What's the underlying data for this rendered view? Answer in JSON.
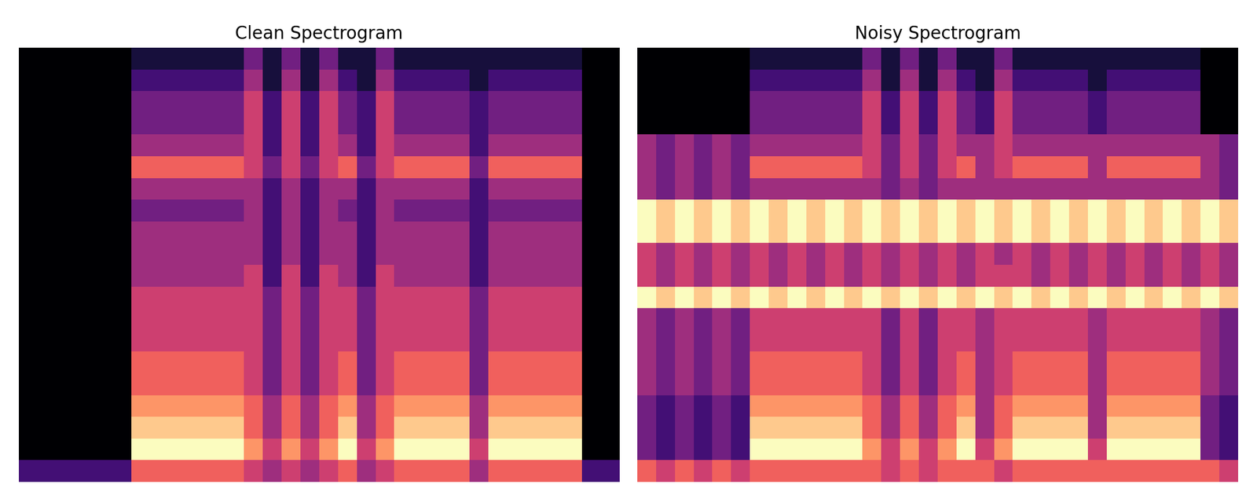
{
  "chart_data": [
    {
      "type": "heatmap",
      "title": "Clean Spectrogram",
      "color": "magma",
      "tick_labels": false,
      "cells": [
        [
          2,
          2,
          2,
          2,
          2,
          2,
          6,
          6,
          6,
          6,
          6,
          6,
          5,
          4,
          5,
          4,
          5,
          6,
          4,
          5,
          6,
          6,
          6,
          6,
          4,
          6,
          6,
          6,
          6,
          6,
          2,
          2
        ],
        [
          0,
          0,
          0,
          0,
          0,
          0,
          9,
          9,
          9,
          9,
          9,
          9,
          7,
          5,
          7,
          5,
          7,
          9,
          5,
          7,
          9,
          9,
          9,
          9,
          5,
          9,
          9,
          9,
          9,
          9,
          0,
          0
        ],
        [
          0,
          0,
          0,
          0,
          0,
          0,
          8,
          8,
          8,
          8,
          8,
          8,
          6,
          4,
          6,
          4,
          6,
          8,
          4,
          6,
          8,
          8,
          8,
          8,
          4,
          8,
          8,
          8,
          8,
          8,
          0,
          0
        ],
        [
          0,
          0,
          0,
          0,
          0,
          0,
          7,
          7,
          7,
          7,
          7,
          7,
          6,
          4,
          6,
          4,
          6,
          7,
          4,
          6,
          7,
          7,
          7,
          7,
          4,
          7,
          7,
          7,
          7,
          7,
          0,
          0
        ],
        [
          0,
          0,
          0,
          0,
          0,
          0,
          6,
          6,
          6,
          6,
          6,
          6,
          5,
          3,
          5,
          3,
          5,
          6,
          3,
          5,
          6,
          6,
          6,
          6,
          3,
          6,
          6,
          6,
          6,
          6,
          0,
          0
        ],
        [
          0,
          0,
          0,
          0,
          0,
          0,
          6,
          6,
          6,
          6,
          6,
          6,
          5,
          3,
          5,
          3,
          5,
          6,
          3,
          5,
          6,
          6,
          6,
          6,
          3,
          6,
          6,
          6,
          6,
          6,
          0,
          0
        ],
        [
          0,
          0,
          0,
          0,
          0,
          0,
          5,
          5,
          5,
          5,
          5,
          5,
          5,
          3,
          5,
          3,
          5,
          5,
          3,
          5,
          5,
          5,
          5,
          5,
          3,
          5,
          5,
          5,
          5,
          5,
          0,
          0
        ],
        [
          0,
          0,
          0,
          0,
          0,
          0,
          5,
          5,
          5,
          5,
          5,
          5,
          5,
          3,
          5,
          3,
          5,
          5,
          3,
          5,
          5,
          5,
          5,
          5,
          3,
          5,
          5,
          5,
          5,
          5,
          0,
          0
        ],
        [
          0,
          0,
          0,
          0,
          0,
          0,
          5,
          5,
          5,
          5,
          5,
          5,
          5,
          3,
          5,
          3,
          5,
          5,
          3,
          5,
          5,
          5,
          5,
          5,
          3,
          5,
          5,
          5,
          5,
          5,
          0,
          0
        ],
        [
          0,
          0,
          0,
          0,
          0,
          0,
          4,
          4,
          4,
          4,
          4,
          4,
          5,
          2,
          5,
          2,
          5,
          4,
          2,
          5,
          4,
          4,
          4,
          4,
          2,
          4,
          4,
          4,
          4,
          4,
          0,
          0
        ],
        [
          0,
          0,
          0,
          0,
          0,
          0,
          4,
          4,
          4,
          4,
          4,
          4,
          4,
          2,
          4,
          2,
          4,
          4,
          2,
          4,
          4,
          4,
          4,
          4,
          2,
          4,
          4,
          4,
          4,
          4,
          0,
          0
        ],
        [
          0,
          0,
          0,
          0,
          0,
          0,
          4,
          4,
          4,
          4,
          4,
          4,
          4,
          2,
          4,
          2,
          4,
          4,
          2,
          4,
          4,
          4,
          4,
          4,
          2,
          4,
          4,
          4,
          4,
          4,
          0,
          0
        ],
        [
          0,
          0,
          0,
          0,
          0,
          0,
          3,
          3,
          3,
          3,
          3,
          3,
          4,
          2,
          4,
          2,
          4,
          3,
          2,
          4,
          3,
          3,
          3,
          3,
          2,
          3,
          3,
          3,
          3,
          3,
          0,
          0
        ],
        [
          0,
          0,
          0,
          0,
          0,
          0,
          4,
          4,
          4,
          4,
          4,
          4,
          4,
          2,
          4,
          2,
          4,
          4,
          2,
          4,
          4,
          4,
          4,
          4,
          2,
          4,
          4,
          4,
          4,
          4,
          0,
          0
        ],
        [
          0,
          0,
          0,
          0,
          0,
          0,
          6,
          6,
          6,
          6,
          6,
          6,
          5,
          3,
          5,
          3,
          5,
          6,
          3,
          5,
          6,
          6,
          6,
          6,
          3,
          6,
          6,
          6,
          6,
          6,
          0,
          0
        ],
        [
          0,
          0,
          0,
          0,
          0,
          0,
          4,
          4,
          4,
          4,
          4,
          4,
          5,
          2,
          5,
          2,
          5,
          4,
          2,
          5,
          4,
          4,
          4,
          4,
          2,
          4,
          4,
          4,
          4,
          4,
          0,
          0
        ],
        [
          0,
          0,
          0,
          0,
          0,
          0,
          3,
          3,
          3,
          3,
          3,
          3,
          5,
          2,
          5,
          2,
          5,
          3,
          2,
          5,
          3,
          3,
          3,
          3,
          2,
          3,
          3,
          3,
          3,
          3,
          0,
          0
        ],
        [
          0,
          0,
          0,
          0,
          0,
          0,
          3,
          3,
          3,
          3,
          3,
          3,
          5,
          2,
          5,
          2,
          5,
          3,
          2,
          5,
          3,
          3,
          3,
          3,
          2,
          3,
          3,
          3,
          3,
          3,
          0,
          0
        ],
        [
          0,
          0,
          0,
          0,
          0,
          0,
          2,
          2,
          2,
          2,
          2,
          2,
          4,
          1,
          4,
          1,
          4,
          2,
          1,
          4,
          2,
          2,
          2,
          2,
          1,
          2,
          2,
          2,
          2,
          2,
          0,
          0
        ],
        [
          0,
          0,
          0,
          0,
          0,
          0,
          1,
          1,
          1,
          1,
          1,
          1,
          3,
          1,
          3,
          1,
          3,
          1,
          1,
          3,
          1,
          1,
          1,
          1,
          1,
          1,
          1,
          1,
          1,
          1,
          0,
          0
        ]
      ]
    },
    {
      "type": "heatmap",
      "title": "Noisy Spectrogram",
      "color": "magma",
      "tick_labels": false,
      "cells": [
        [
          6,
          5,
          6,
          5,
          6,
          5,
          6,
          6,
          6,
          6,
          6,
          6,
          6,
          5,
          6,
          5,
          6,
          6,
          6,
          5,
          6,
          6,
          6,
          6,
          6,
          6,
          6,
          6,
          6,
          6,
          6,
          5
        ],
        [
          3,
          2,
          3,
          2,
          3,
          2,
          9,
          9,
          9,
          9,
          9,
          9,
          7,
          5,
          7,
          5,
          7,
          9,
          5,
          7,
          9,
          9,
          9,
          9,
          5,
          9,
          9,
          9,
          9,
          9,
          3,
          2
        ],
        [
          3,
          2,
          3,
          2,
          3,
          2,
          8,
          8,
          8,
          8,
          8,
          8,
          6,
          4,
          6,
          4,
          6,
          8,
          4,
          6,
          8,
          8,
          8,
          8,
          4,
          8,
          8,
          8,
          8,
          8,
          3,
          2
        ],
        [
          3,
          2,
          3,
          2,
          3,
          2,
          7,
          7,
          7,
          7,
          7,
          7,
          6,
          4,
          6,
          4,
          6,
          7,
          4,
          6,
          7,
          7,
          7,
          7,
          4,
          7,
          7,
          7,
          7,
          7,
          3,
          2
        ],
        [
          4,
          3,
          4,
          3,
          4,
          3,
          6,
          6,
          6,
          6,
          6,
          6,
          5,
          3,
          5,
          3,
          5,
          6,
          4,
          5,
          6,
          6,
          6,
          6,
          4,
          6,
          6,
          6,
          6,
          6,
          4,
          3
        ],
        [
          4,
          3,
          4,
          3,
          4,
          3,
          6,
          6,
          6,
          6,
          6,
          6,
          5,
          3,
          5,
          3,
          5,
          6,
          4,
          5,
          6,
          6,
          6,
          6,
          4,
          6,
          6,
          6,
          6,
          6,
          4,
          3
        ],
        [
          4,
          3,
          4,
          3,
          4,
          3,
          5,
          5,
          5,
          5,
          5,
          5,
          5,
          3,
          5,
          3,
          5,
          5,
          4,
          5,
          5,
          5,
          5,
          5,
          4,
          5,
          5,
          5,
          5,
          5,
          4,
          3
        ],
        [
          4,
          3,
          4,
          3,
          4,
          3,
          5,
          5,
          5,
          5,
          5,
          5,
          5,
          3,
          5,
          3,
          5,
          5,
          4,
          5,
          5,
          5,
          5,
          5,
          4,
          5,
          5,
          5,
          5,
          5,
          4,
          3
        ],
        [
          9,
          8,
          9,
          8,
          9,
          8,
          9,
          8,
          9,
          8,
          9,
          8,
          9,
          8,
          9,
          8,
          9,
          8,
          9,
          8,
          9,
          8,
          9,
          8,
          9,
          8,
          9,
          8,
          9,
          8,
          9,
          8
        ],
        [
          5,
          4,
          5,
          4,
          5,
          4,
          5,
          4,
          5,
          4,
          5,
          4,
          5,
          4,
          5,
          4,
          5,
          4,
          5,
          5,
          5,
          4,
          5,
          4,
          5,
          4,
          5,
          4,
          5,
          4,
          5,
          4
        ],
        [
          5,
          4,
          5,
          4,
          5,
          4,
          5,
          4,
          5,
          4,
          5,
          4,
          5,
          4,
          5,
          4,
          5,
          4,
          5,
          4,
          5,
          4,
          5,
          4,
          5,
          4,
          5,
          4,
          5,
          4,
          5,
          4
        ],
        [
          9,
          8,
          9,
          8,
          9,
          8,
          9,
          8,
          9,
          8,
          9,
          8,
          9,
          8,
          9,
          8,
          9,
          8,
          9,
          8,
          9,
          8,
          9,
          8,
          9,
          8,
          9,
          8,
          9,
          8,
          9,
          8
        ],
        [
          9,
          8,
          9,
          8,
          9,
          8,
          9,
          8,
          9,
          8,
          9,
          8,
          9,
          8,
          9,
          8,
          9,
          8,
          9,
          8,
          9,
          8,
          9,
          8,
          9,
          8,
          9,
          8,
          9,
          8,
          9,
          8
        ],
        [
          4,
          3,
          4,
          3,
          4,
          3,
          4,
          4,
          4,
          4,
          4,
          4,
          4,
          3,
          4,
          3,
          4,
          4,
          4,
          4,
          4,
          4,
          4,
          4,
          4,
          4,
          4,
          4,
          4,
          4,
          4,
          3
        ],
        [
          4,
          3,
          4,
          3,
          4,
          3,
          6,
          6,
          6,
          6,
          6,
          6,
          5,
          3,
          5,
          3,
          5,
          6,
          4,
          5,
          6,
          6,
          6,
          6,
          4,
          6,
          6,
          6,
          6,
          6,
          4,
          3
        ],
        [
          4,
          3,
          4,
          3,
          4,
          3,
          4,
          4,
          4,
          4,
          4,
          4,
          5,
          3,
          5,
          3,
          5,
          4,
          4,
          5,
          4,
          4,
          4,
          4,
          4,
          4,
          4,
          4,
          4,
          4,
          4,
          3
        ],
        [
          0,
          0,
          0,
          0,
          0,
          0,
          3,
          3,
          3,
          3,
          3,
          3,
          5,
          2,
          5,
          2,
          5,
          3,
          2,
          5,
          3,
          3,
          3,
          3,
          2,
          3,
          3,
          3,
          3,
          3,
          0,
          0
        ],
        [
          0,
          0,
          0,
          0,
          0,
          0,
          3,
          3,
          3,
          3,
          3,
          3,
          5,
          2,
          5,
          2,
          5,
          3,
          2,
          5,
          3,
          3,
          3,
          3,
          2,
          3,
          3,
          3,
          3,
          3,
          0,
          0
        ],
        [
          0,
          0,
          0,
          0,
          0,
          0,
          2,
          2,
          2,
          2,
          2,
          2,
          4,
          1,
          4,
          1,
          4,
          2,
          1,
          4,
          2,
          2,
          2,
          2,
          1,
          2,
          2,
          2,
          2,
          2,
          0,
          0
        ],
        [
          0,
          0,
          0,
          0,
          0,
          0,
          1,
          1,
          1,
          1,
          1,
          1,
          3,
          1,
          3,
          1,
          3,
          1,
          1,
          3,
          1,
          1,
          1,
          1,
          1,
          1,
          1,
          1,
          1,
          1,
          0,
          0
        ]
      ]
    }
  ]
}
